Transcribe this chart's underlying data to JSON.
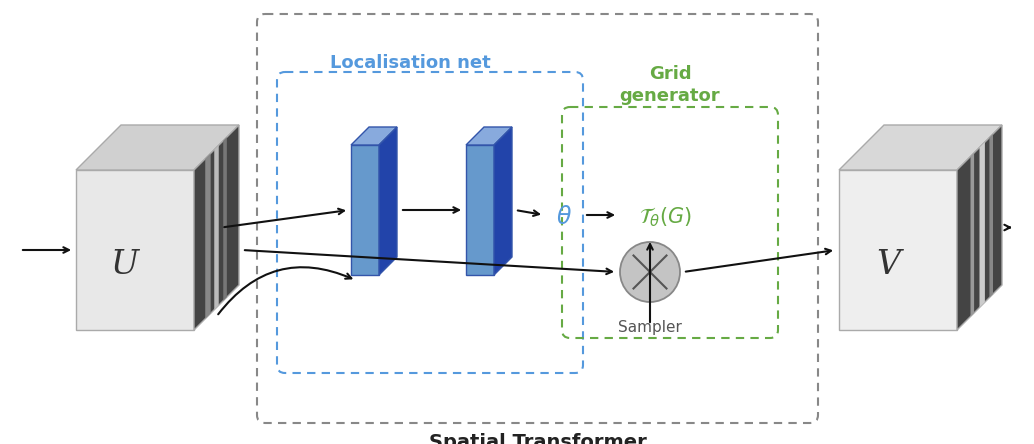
{
  "title": "Spatial Transformer",
  "localisation_label": "Localisation net",
  "grid_label": "Grid\ngenerator",
  "sampler_label": "Sampler",
  "U_label": "U",
  "V_label": "V",
  "bg_color": "#ffffff",
  "box_outer_color": "#777777",
  "box_loc_color": "#5599dd",
  "box_grid_color": "#66aa44",
  "block_face_color": "#6699cc",
  "block_top_color": "#88bbdd",
  "block_right_color": "#2255aa",
  "sampler_face_color": "#c0c0c0",
  "sampler_edge_color": "#888888",
  "cube_U_front": "#e8e8e8",
  "cube_U_top": "#c8c8c8",
  "cube_U_right": "#555555",
  "cube_V_front": "#e8e8e8",
  "cube_V_top": "#c8c8c8",
  "cube_V_right": "#555555",
  "arrow_color": "#111111",
  "theta_color": "#5599dd",
  "T_theta_color": "#66aa44",
  "loc_label_color": "#5599dd",
  "grid_label_color": "#66aa44",
  "title_color": "#222222",
  "U_color": "#333333",
  "V_color": "#333333",
  "sampler_label_color": "#555555"
}
